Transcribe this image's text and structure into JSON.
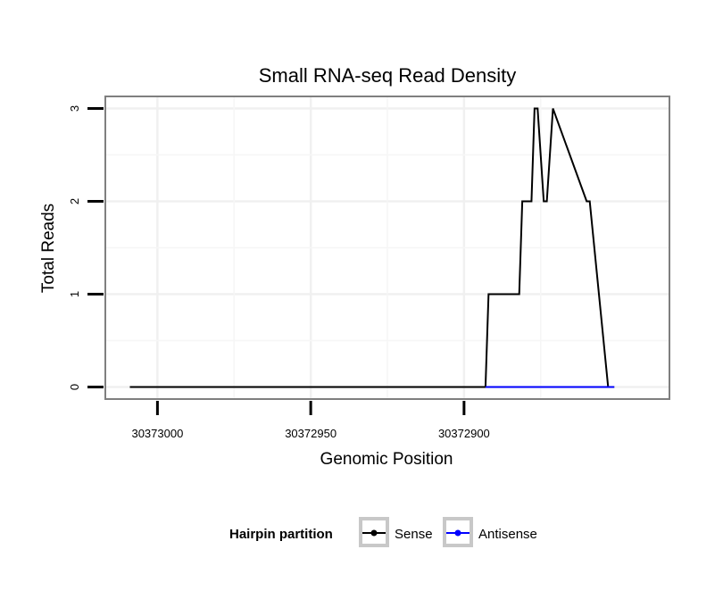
{
  "chart_data": {
    "type": "line",
    "title": "Small RNA-seq Read Density",
    "xlabel": "Genomic Position",
    "ylabel": "Total Reads",
    "x_reversed": true,
    "xlim": [
      30373017,
      30372833
    ],
    "ylim": [
      -0.13,
      3.13
    ],
    "x_ticks": [
      30373000,
      30372950,
      30372900
    ],
    "x_tick_labels": [
      "30373000",
      "30372950",
      "30372900"
    ],
    "y_ticks": [
      0,
      1,
      2,
      3
    ],
    "y_tick_labels": [
      "0",
      "1",
      "2",
      "3"
    ],
    "grid": true,
    "legend": {
      "title": "Hairpin partition",
      "position": "bottom",
      "entries": [
        {
          "name": "Sense",
          "color": "#000000"
        },
        {
          "name": "Antisense",
          "color": "#0000ff"
        }
      ]
    },
    "series": [
      {
        "name": "Sense",
        "color": "#000000",
        "x": [
          30373009,
          30372893,
          30372892,
          30372882,
          30372881,
          30372878,
          30372877,
          30372876,
          30372874,
          30372873,
          30372871,
          30372871,
          30372860,
          30372859,
          30372853,
          30372851
        ],
        "y": [
          0,
          0,
          1,
          1,
          2,
          2,
          3,
          3,
          2,
          2,
          3,
          3,
          2,
          2,
          0,
          0
        ]
      },
      {
        "name": "Antisense",
        "color": "#0000ff",
        "x": [
          30372893,
          30372851
        ],
        "y": [
          0,
          0
        ]
      }
    ]
  }
}
